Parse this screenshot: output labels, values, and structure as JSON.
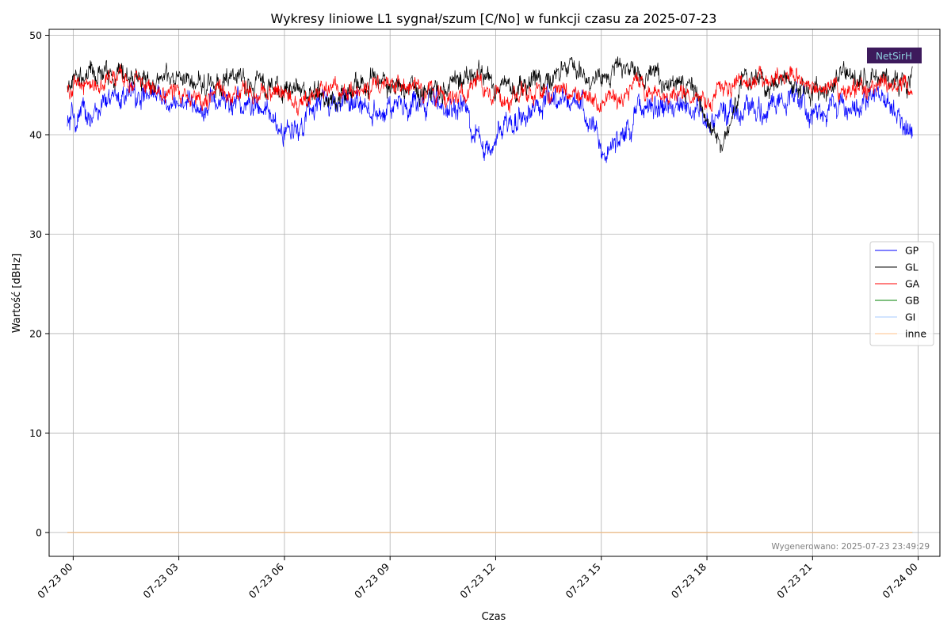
{
  "chart_data": {
    "type": "line",
    "title": "Wykresy liniowe L1 sygnał/szum [C/No] w funkcji czasu za 2025-07-23",
    "xlabel": "Czas",
    "ylabel": "Wartość [dBHz]",
    "x_range": [
      "2025-07-22 23:19",
      "2025-07-24 00:37"
    ],
    "ylim": [
      -2.4,
      50.6
    ],
    "x_ticks": [
      "07-23 00",
      "07-23 03",
      "07-23 06",
      "07-23 09",
      "07-23 12",
      "07-23 15",
      "07-23 18",
      "07-23 21",
      "07-24 00"
    ],
    "y_ticks": [
      "0",
      "10",
      "20",
      "30",
      "40",
      "50"
    ],
    "grid": true,
    "legend_position": "center-right",
    "series": [
      {
        "name": "GP",
        "color": "#0000ff",
        "x": [
          "2025-07-22 23:50",
          "2025-07-23 00:30",
          "2025-07-23 01:30",
          "2025-07-23 02:30",
          "2025-07-23 03:30",
          "2025-07-23 04:30",
          "2025-07-23 05:30",
          "2025-07-23 06:00",
          "2025-07-23 07:00",
          "2025-07-23 08:00",
          "2025-07-23 09:00",
          "2025-07-23 10:00",
          "2025-07-23 11:00",
          "2025-07-23 11:40",
          "2025-07-23 12:30",
          "2025-07-23 13:30",
          "2025-07-23 14:30",
          "2025-07-23 15:05",
          "2025-07-23 16:00",
          "2025-07-23 17:00",
          "2025-07-23 18:00",
          "2025-07-23 18:30",
          "2025-07-23 19:30",
          "2025-07-23 20:30",
          "2025-07-23 21:00",
          "2025-07-23 22:00",
          "2025-07-23 23:00",
          "2025-07-23 23:50"
        ],
        "values": [
          41,
          42,
          44,
          43.5,
          43,
          43.5,
          42,
          40,
          43,
          43,
          42.5,
          43,
          43,
          38,
          42,
          43,
          43,
          37.5,
          42.5,
          43,
          42,
          42,
          42.5,
          44,
          42.5,
          42.5,
          44,
          40
        ]
      },
      {
        "name": "GL",
        "color": "#000000",
        "x": [
          "2025-07-22 23:50",
          "2025-07-23 00:30",
          "2025-07-23 01:30",
          "2025-07-23 02:30",
          "2025-07-23 03:30",
          "2025-07-23 04:30",
          "2025-07-23 05:30",
          "2025-07-23 06:30",
          "2025-07-23 07:30",
          "2025-07-23 08:30",
          "2025-07-23 09:30",
          "2025-07-23 10:30",
          "2025-07-23 11:30",
          "2025-07-23 12:30",
          "2025-07-23 13:30",
          "2025-07-23 14:30",
          "2025-07-23 15:30",
          "2025-07-23 16:30",
          "2025-07-23 17:30",
          "2025-07-23 18:20",
          "2025-07-23 19:00",
          "2025-07-23 20:00",
          "2025-07-23 21:00",
          "2025-07-23 22:00",
          "2025-07-23 23:00",
          "2025-07-23 23:50"
        ],
        "values": [
          45,
          46,
          46,
          45.5,
          45,
          45.5,
          45,
          44.5,
          43.5,
          45.5,
          44.5,
          45,
          46,
          44.5,
          46,
          46.5,
          46.5,
          46,
          45,
          39,
          45,
          45.5,
          44.5,
          45.5,
          46,
          45
        ]
      },
      {
        "name": "GA",
        "color": "#ff0000",
        "x": [
          "2025-07-22 23:50",
          "2025-07-23 00:30",
          "2025-07-23 01:30",
          "2025-07-23 02:30",
          "2025-07-23 03:30",
          "2025-07-23 04:30",
          "2025-07-23 05:30",
          "2025-07-23 06:30",
          "2025-07-23 07:30",
          "2025-07-23 08:30",
          "2025-07-23 09:30",
          "2025-07-23 10:30",
          "2025-07-23 11:30",
          "2025-07-23 12:30",
          "2025-07-23 13:30",
          "2025-07-23 14:30",
          "2025-07-23 15:00",
          "2025-07-23 16:00",
          "2025-07-23 17:00",
          "2025-07-23 18:00",
          "2025-07-23 19:00",
          "2025-07-23 20:00",
          "2025-07-23 21:00",
          "2025-07-23 22:00",
          "2025-07-23 23:00",
          "2025-07-23 23:50"
        ],
        "values": [
          44.5,
          45,
          45.5,
          44.5,
          44,
          44,
          44.5,
          43.5,
          45,
          44.5,
          44.5,
          44,
          44.5,
          43.5,
          44.5,
          44,
          43,
          44.5,
          44,
          43.5,
          45,
          46,
          45,
          44.5,
          45,
          45
        ]
      },
      {
        "name": "GB",
        "color": "#008000",
        "x": [
          "2025-07-22 23:50",
          "2025-07-23 23:50"
        ],
        "values": [
          0,
          0
        ]
      },
      {
        "name": "GI",
        "color": "#a6c8ff",
        "x": [
          "2025-07-22 23:50",
          "2025-07-23 23:50"
        ],
        "values": [
          0,
          0
        ]
      },
      {
        "name": "inne",
        "color": "#ffc08a",
        "x": [
          "2025-07-22 23:50",
          "2025-07-23 23:50"
        ],
        "values": [
          0,
          0
        ]
      }
    ],
    "footer": "Wygenerowano: 2025-07-23 23:49:29",
    "logo_text": "NetSirH"
  }
}
